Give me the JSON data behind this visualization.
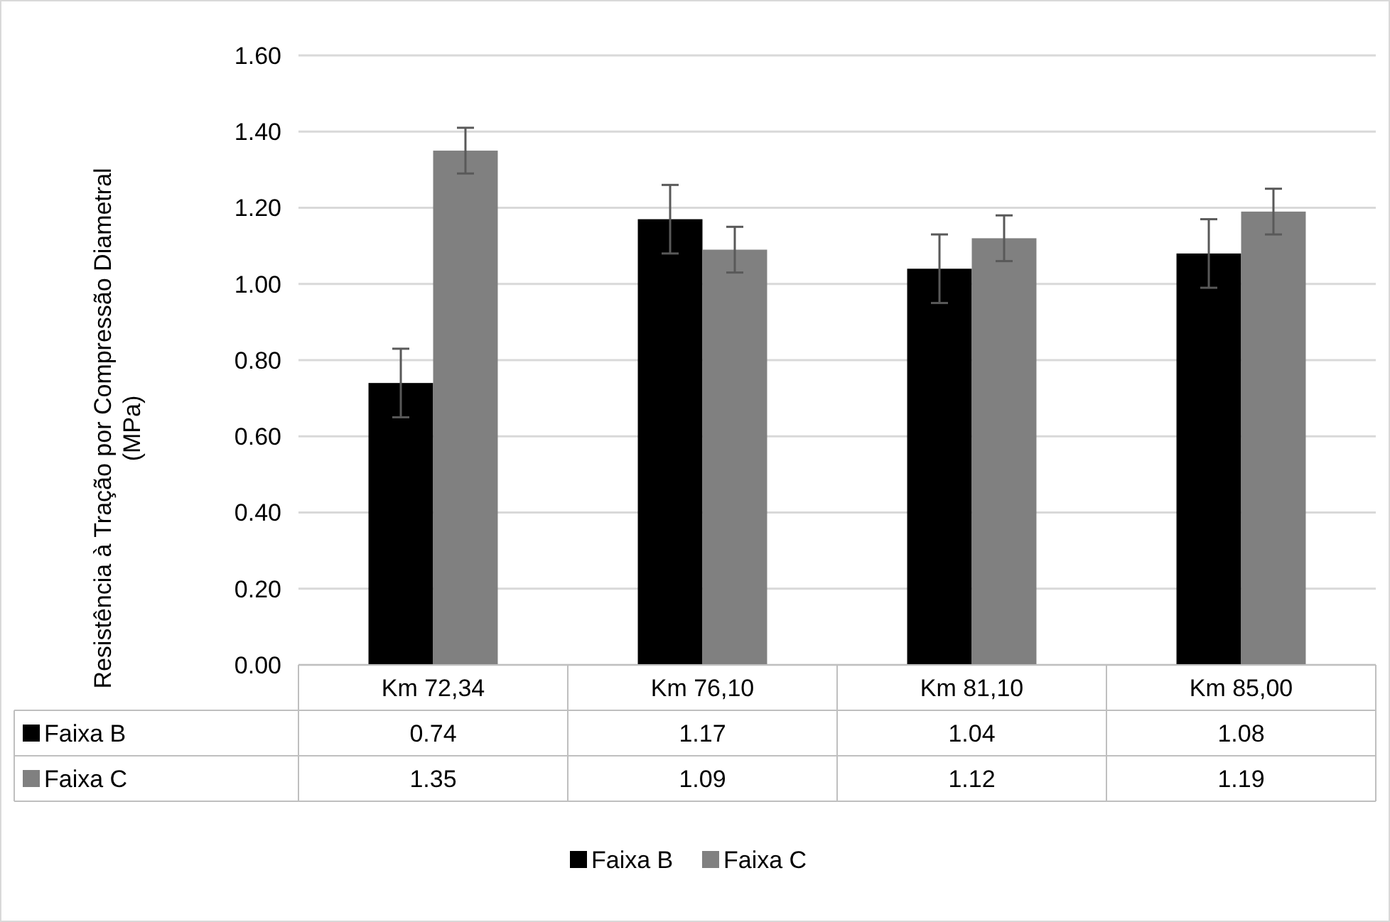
{
  "chart_data": {
    "type": "bar",
    "ylabel": "Resistência à Tração por Compressão Diametral\n(MPa)",
    "categories": [
      "Km 72,34",
      "Km 76,10",
      "Km 81,10",
      "Km 85,00"
    ],
    "series": [
      {
        "name": "Faixa B",
        "color": "#000000",
        "values": [
          0.74,
          1.17,
          1.04,
          1.08
        ],
        "errors": [
          0.09,
          0.09,
          0.09,
          0.09
        ]
      },
      {
        "name": "Faixa C",
        "color": "#808080",
        "values": [
          1.35,
          1.09,
          1.12,
          1.19
        ],
        "errors": [
          0.06,
          0.06,
          0.06,
          0.06
        ]
      }
    ],
    "ylim": [
      0,
      1.6
    ],
    "yticks": [
      {
        "value": 0,
        "label": "0.00"
      },
      {
        "value": 0.2,
        "label": "0.20"
      },
      {
        "value": 0.4,
        "label": "0.40"
      },
      {
        "value": 0.6,
        "label": "0.60"
      },
      {
        "value": 0.8,
        "label": "0.80"
      },
      {
        "value": 1.0,
        "label": "1.00"
      },
      {
        "value": 1.2,
        "label": "1.20"
      },
      {
        "value": 1.4,
        "label": "1.40"
      },
      {
        "value": 1.6,
        "label": "1.60"
      }
    ],
    "grid": "y",
    "legend": "bottom",
    "data_labels": true
  }
}
